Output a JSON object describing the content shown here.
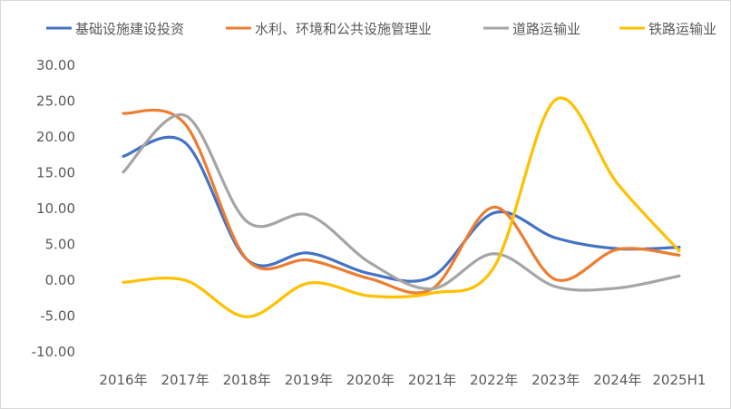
{
  "chart_data": {
    "type": "line",
    "title": "",
    "xlabel": "",
    "ylabel": "",
    "categories": [
      "2016年",
      "2017年",
      "2018年",
      "2019年",
      "2020年",
      "2021年",
      "2022年",
      "2023年",
      "2024年",
      "2025H1"
    ],
    "ylim": [
      -10,
      30
    ],
    "ytick_step": 5,
    "ytick_labels": [
      "30.00",
      "25.00",
      "20.00",
      "15.00",
      "10.00",
      "5.00",
      "0.00",
      "-5.00",
      "-10.00"
    ],
    "grid": false,
    "smooth": true,
    "legend_position": "top",
    "series": [
      {
        "name": "基础设施建设投资",
        "color": "#4472C4",
        "values": [
          17.3,
          19.2,
          2.9,
          3.8,
          0.9,
          0.5,
          9.4,
          5.9,
          4.4,
          4.6
        ]
      },
      {
        "name": "水利、环境和公共设施管理业",
        "color": "#ED7D31",
        "values": [
          23.3,
          21.8,
          2.9,
          2.8,
          0.2,
          -1.2,
          10.2,
          0.1,
          4.3,
          3.5
        ]
      },
      {
        "name": "道路运输业",
        "color": "#A5A5A5",
        "values": [
          15.1,
          23.0,
          8.2,
          9.1,
          2.4,
          -1.2,
          3.7,
          -0.9,
          -1.1,
          0.6
        ]
      },
      {
        "name": "铁路运输业",
        "color": "#FFC000",
        "values": [
          -0.3,
          0.0,
          -5.1,
          -0.4,
          -2.2,
          -1.8,
          1.8,
          25.2,
          13.5,
          4.1
        ]
      }
    ]
  }
}
